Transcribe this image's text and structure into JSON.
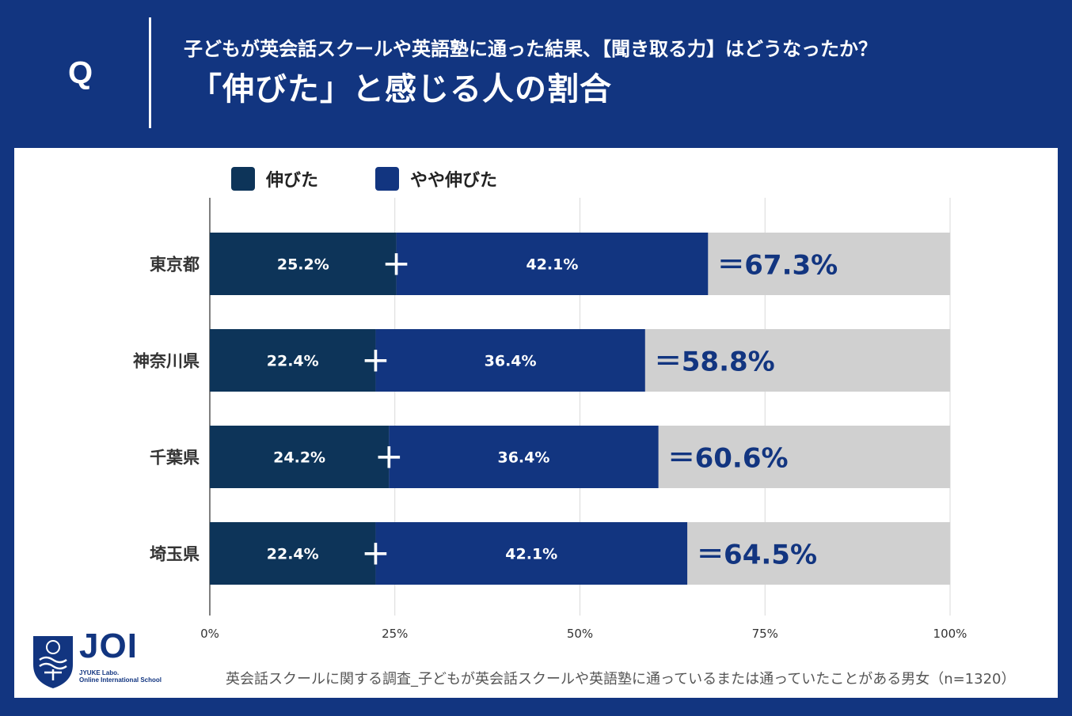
{
  "header": {
    "q_mark": "Q",
    "question": "子どもが英会話スクールや英語塾に通った結果、【聞き取る力】はどうなったか？",
    "title": "「伸びた」と感じる人の割合"
  },
  "colors": {
    "background": "#123580",
    "series1": "#0d3459",
    "series2": "#123580",
    "remainder": "#d0d0d0",
    "total_text": "#123580"
  },
  "chart_data": {
    "type": "bar",
    "orientation": "horizontal",
    "stacked": true,
    "categories": [
      "東京都",
      "神奈川県",
      "千葉県",
      "埼玉県"
    ],
    "series": [
      {
        "name": "伸びた",
        "values": [
          25.2,
          22.4,
          24.2,
          22.4
        ],
        "labels": [
          "25.2%",
          "22.4%",
          "24.2%",
          "22.4%"
        ]
      },
      {
        "name": "やや伸びた",
        "values": [
          42.1,
          36.4,
          36.4,
          42.1
        ],
        "labels": [
          "42.1%",
          "36.4%",
          "36.4%",
          "42.1%"
        ]
      }
    ],
    "totals": [
      67.3,
      58.8,
      60.6,
      64.5
    ],
    "total_labels": [
      "＝67.3%",
      "＝58.8%",
      "＝60.6%",
      "＝64.5%"
    ],
    "plus_symbol": "+",
    "xlim": [
      0,
      100
    ],
    "xticks": [
      0,
      25,
      50,
      75,
      100
    ],
    "xtick_labels": [
      "0%",
      "25%",
      "50%",
      "75%",
      "100%"
    ],
    "grid": true,
    "legend_position": "top-left"
  },
  "legend": {
    "item1": "伸びた",
    "item2": "やや伸びた"
  },
  "footer": {
    "note": "英会話スクールに関する調査_子どもが英会話スクールや英語塾に通っているまたは通っていたことがある男女（n=1320）"
  },
  "logo": {
    "name": "JOI",
    "subtitle_line1": "JYUKE Labo.",
    "subtitle_line2": "Online International School"
  }
}
